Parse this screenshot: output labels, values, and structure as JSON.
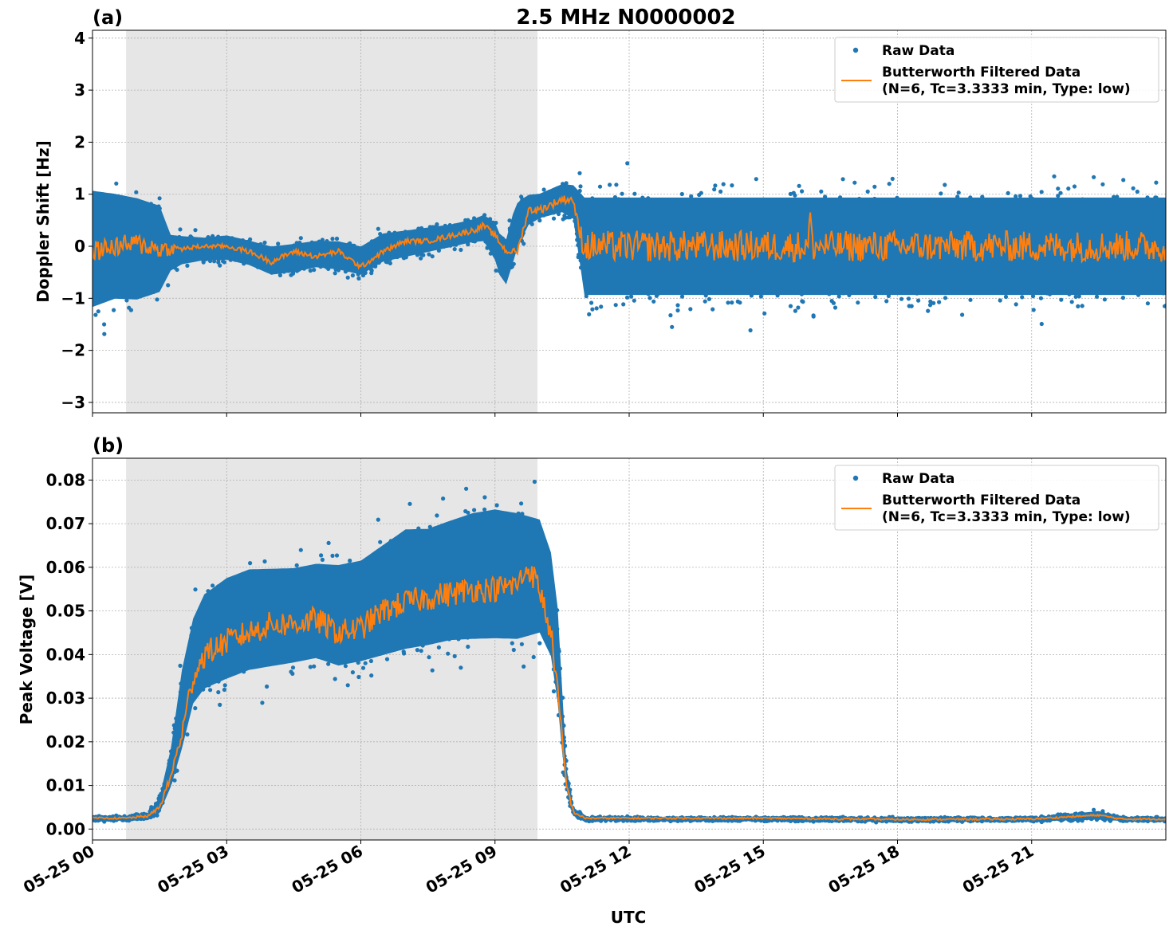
{
  "chart_data": {
    "title": "2.5 MHz N0000002",
    "xlabel": "UTC",
    "type": "scatter",
    "x_tick_labels": [
      "05-25 00",
      "05-25 03",
      "05-25 06",
      "05-25 09",
      "05-25 12",
      "05-25 15",
      "05-25 18",
      "05-25 21"
    ],
    "x_tick_hours": [
      0,
      3,
      6,
      9,
      12,
      15,
      18,
      21
    ],
    "xlim_hours": [
      0,
      24
    ],
    "shaded_interval_hours": [
      0.75,
      9.95
    ],
    "grid": true,
    "legend": {
      "placement": "upper right",
      "entries": [
        "Raw Data",
        "Butterworth Filtered Data",
        "(N=6, Tc=3.3333 min, Type: low)"
      ]
    },
    "colors": {
      "raw": "#1f77b4",
      "filtered": "#ff7f0e",
      "shade": "#e6e6e6"
    },
    "panels": [
      {
        "label": "(a)",
        "ylabel": "Doppler Shift [Hz]",
        "ylim": [
          -3.2,
          4.15
        ],
        "yticks": [
          4,
          3,
          2,
          1,
          0,
          -1,
          -2,
          -3
        ],
        "ytick_labels": [
          "4",
          "3",
          "2",
          "1",
          "0",
          "−1",
          "−2",
          "−3"
        ],
        "series": [
          {
            "name": "Raw Data",
            "kind": "scatter-envelope",
            "x_hours": [
              0,
              0.5,
              1.0,
              1.5,
              1.75,
              2.0,
              2.5,
              3.0,
              3.5,
              4.0,
              4.5,
              5.0,
              5.5,
              6.0,
              6.5,
              7.0,
              7.5,
              8.0,
              8.5,
              8.75,
              9.0,
              9.1,
              9.25,
              9.4,
              9.5,
              9.75,
              10.0,
              10.25,
              10.5,
              10.75,
              10.9,
              11.0,
              12,
              13,
              14,
              15,
              16,
              17,
              18,
              19,
              20,
              21,
              22,
              23,
              24
            ],
            "low": [
              -1.6,
              -1.4,
              -1.4,
              -1.2,
              -0.6,
              -0.45,
              -0.35,
              -0.35,
              -0.45,
              -0.65,
              -0.6,
              -0.5,
              -0.55,
              -0.65,
              -0.4,
              -0.3,
              -0.2,
              -0.1,
              0.0,
              0.0,
              -0.4,
              -0.7,
              -0.9,
              -0.5,
              -0.2,
              0.3,
              0.45,
              0.5,
              0.55,
              0.4,
              -0.6,
              -1.3,
              -1.3,
              -1.3,
              -1.3,
              -1.3,
              -1.3,
              -1.3,
              -1.3,
              -1.3,
              -1.3,
              -1.3,
              -1.3,
              -1.3,
              -1.3
            ],
            "high": [
              1.5,
              1.4,
              1.3,
              1.1,
              0.35,
              0.3,
              0.25,
              0.3,
              0.2,
              0.1,
              0.15,
              0.2,
              0.2,
              0.1,
              0.35,
              0.4,
              0.45,
              0.5,
              0.6,
              0.7,
              0.6,
              0.4,
              0.3,
              0.8,
              1.0,
              1.1,
              1.1,
              1.2,
              1.3,
              1.3,
              1.3,
              1.3,
              1.3,
              1.3,
              1.3,
              1.3,
              1.3,
              1.3,
              1.3,
              1.3,
              1.3,
              1.3,
              1.3,
              1.3,
              1.3
            ]
          },
          {
            "name": "Butterworth Filtered Data",
            "kind": "line",
            "x_hours": [
              0,
              0.5,
              1.0,
              1.5,
              2.0,
              2.5,
              3.0,
              3.5,
              4.0,
              4.5,
              5.0,
              5.5,
              6.0,
              6.5,
              7.0,
              7.5,
              8.0,
              8.5,
              8.75,
              9.0,
              9.25,
              9.5,
              9.75,
              10.0,
              10.25,
              10.5,
              10.75,
              10.85,
              11.0,
              11.5,
              12,
              14,
              16,
              16.05,
              16.1,
              18,
              20,
              22,
              24
            ],
            "y": [
              -0.1,
              0.0,
              0.05,
              -0.05,
              -0.05,
              0.0,
              0.0,
              -0.1,
              -0.3,
              -0.1,
              -0.2,
              -0.1,
              -0.4,
              -0.1,
              0.1,
              0.1,
              0.2,
              0.3,
              0.4,
              0.2,
              -0.1,
              -0.1,
              0.7,
              0.7,
              0.8,
              0.9,
              0.9,
              0.4,
              0.0,
              0.0,
              0.0,
              0.0,
              0.0,
              0.65,
              0.0,
              0.0,
              0.0,
              0.0,
              0.0
            ],
            "noise": [
              0.2,
              0.2,
              0.2,
              0.2,
              0.05,
              0.04,
              0.04,
              0.05,
              0.05,
              0.05,
              0.05,
              0.05,
              0.05,
              0.05,
              0.05,
              0.05,
              0.05,
              0.06,
              0.06,
              0.06,
              0.06,
              0.06,
              0.08,
              0.08,
              0.08,
              0.08,
              0.08,
              0.15,
              0.3,
              0.3,
              0.3,
              0.3,
              0.3,
              0.0,
              0.3,
              0.3,
              0.3,
              0.3,
              0.3
            ]
          }
        ]
      },
      {
        "label": "(b)",
        "ylabel": "Peak Voltage [V]",
        "ylim": [
          -0.0025,
          0.085
        ],
        "yticks": [
          0.08,
          0.07,
          0.06,
          0.05,
          0.04,
          0.03,
          0.02,
          0.01,
          0.0
        ],
        "ytick_labels": [
          "0.08",
          "0.07",
          "0.06",
          "0.05",
          "0.04",
          "0.03",
          "0.02",
          "0.01",
          "0.00"
        ],
        "series": [
          {
            "name": "Raw Data",
            "kind": "scatter-envelope",
            "x_hours": [
              0,
              0.75,
              1.25,
              1.5,
              1.75,
              2.0,
              2.25,
              2.5,
              3.0,
              3.5,
              4.0,
              4.5,
              5.0,
              5.5,
              6.0,
              6.5,
              7.0,
              7.5,
              8.0,
              8.5,
              9.0,
              9.5,
              10.0,
              10.25,
              10.4,
              10.5,
              10.6,
              10.75,
              11.0,
              12,
              15,
              18,
              21,
              22.5,
              23,
              24
            ],
            "low": [
              0.0018,
              0.0018,
              0.002,
              0.003,
              0.008,
              0.015,
              0.025,
              0.028,
              0.03,
              0.032,
              0.033,
              0.034,
              0.035,
              0.033,
              0.034,
              0.035,
              0.036,
              0.037,
              0.038,
              0.038,
              0.038,
              0.038,
              0.04,
              0.035,
              0.025,
              0.015,
              0.008,
              0.003,
              0.0018,
              0.0018,
              0.0018,
              0.0016,
              0.0017,
              0.0018,
              0.0017,
              0.0017
            ],
            "high": [
              0.0032,
              0.0032,
              0.004,
              0.008,
              0.02,
              0.04,
              0.052,
              0.058,
              0.062,
              0.064,
              0.064,
              0.064,
              0.065,
              0.065,
              0.066,
              0.07,
              0.074,
              0.074,
              0.076,
              0.078,
              0.079,
              0.078,
              0.076,
              0.068,
              0.055,
              0.035,
              0.015,
              0.005,
              0.003,
              0.0028,
              0.0028,
              0.0028,
              0.0028,
              0.0045,
              0.0028,
              0.0028
            ]
          },
          {
            "name": "Butterworth Filtered Data",
            "kind": "line",
            "x_hours": [
              0,
              0.75,
              1.25,
              1.5,
              1.75,
              2.0,
              2.25,
              2.5,
              3.0,
              3.5,
              4.0,
              4.5,
              5.0,
              5.5,
              6.0,
              6.5,
              7.0,
              7.5,
              8.0,
              8.5,
              9.0,
              9.5,
              9.75,
              10.0,
              10.25,
              10.4,
              10.5,
              10.6,
              10.75,
              11.0,
              12,
              15,
              18,
              21,
              22.5,
              23,
              24
            ],
            "y": [
              0.0025,
              0.0025,
              0.003,
              0.005,
              0.012,
              0.022,
              0.035,
              0.04,
              0.043,
              0.045,
              0.047,
              0.047,
              0.048,
              0.045,
              0.046,
              0.05,
              0.052,
              0.053,
              0.054,
              0.055,
              0.055,
              0.056,
              0.06,
              0.055,
              0.045,
              0.032,
              0.02,
              0.01,
              0.004,
              0.0025,
              0.0025,
              0.0025,
              0.0022,
              0.0023,
              0.0032,
              0.0023,
              0.0023
            ],
            "noise": [
              0.0002,
              0.0002,
              0.0003,
              0.0005,
              0.001,
              0.002,
              0.003,
              0.003,
              0.003,
              0.003,
              0.003,
              0.003,
              0.003,
              0.003,
              0.003,
              0.003,
              0.003,
              0.003,
              0.003,
              0.003,
              0.003,
              0.003,
              0.003,
              0.003,
              0.003,
              0.002,
              0.002,
              0.001,
              0.0005,
              0.0002,
              0.0002,
              0.0002,
              0.0002,
              0.0002,
              0.0002,
              0.0002,
              0.0002
            ]
          }
        ]
      }
    ]
  }
}
